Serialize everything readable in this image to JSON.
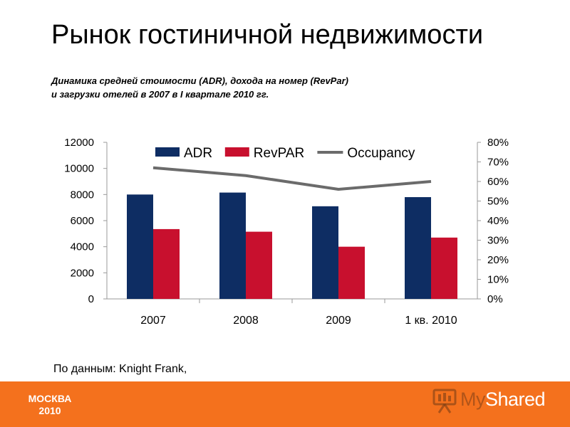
{
  "header": {
    "title": "Рынок гостиничной недвижимости",
    "subtitle_line1": "Динамика средней стоимости (ADR), дохода на номер (RevPar)",
    "subtitle_line2": "и загрузки отелей в 2007 в I квартале 2010 гг."
  },
  "source": "По данным: Knight Frank,",
  "footer": {
    "city": "МОСКВА",
    "year": "2010",
    "logo_text_1": "My",
    "logo_text_2": "Shared",
    "logo_icon": "presentation-board-icon",
    "background_color": "#f4711d"
  },
  "chart_data": {
    "type": "bar",
    "categories": [
      "2007",
      "2008",
      "2009",
      "1 кв. 2010"
    ],
    "series": [
      {
        "name": "ADR",
        "type": "bar",
        "axis": "left",
        "color": "#0e2d63",
        "values": [
          8000,
          8150,
          7100,
          7800
        ]
      },
      {
        "name": "RevPAR",
        "type": "bar",
        "axis": "left",
        "color": "#c8102e",
        "values": [
          5350,
          5150,
          4000,
          4700
        ]
      },
      {
        "name": "Occupancy",
        "type": "line",
        "axis": "right",
        "color": "#6b6b6b",
        "values": [
          0.67,
          0.63,
          0.56,
          0.6
        ]
      }
    ],
    "y_left": {
      "min": 0,
      "max": 12000,
      "step": 2000,
      "ticks": [
        "0",
        "2000",
        "4000",
        "6000",
        "8000",
        "10000",
        "12000"
      ]
    },
    "y_right": {
      "min": 0,
      "max": 0.8,
      "step": 0.1,
      "ticks": [
        "0%",
        "10%",
        "20%",
        "30%",
        "40%",
        "50%",
        "60%",
        "70%",
        "80%"
      ]
    },
    "legend_position": "top",
    "grid": false
  }
}
